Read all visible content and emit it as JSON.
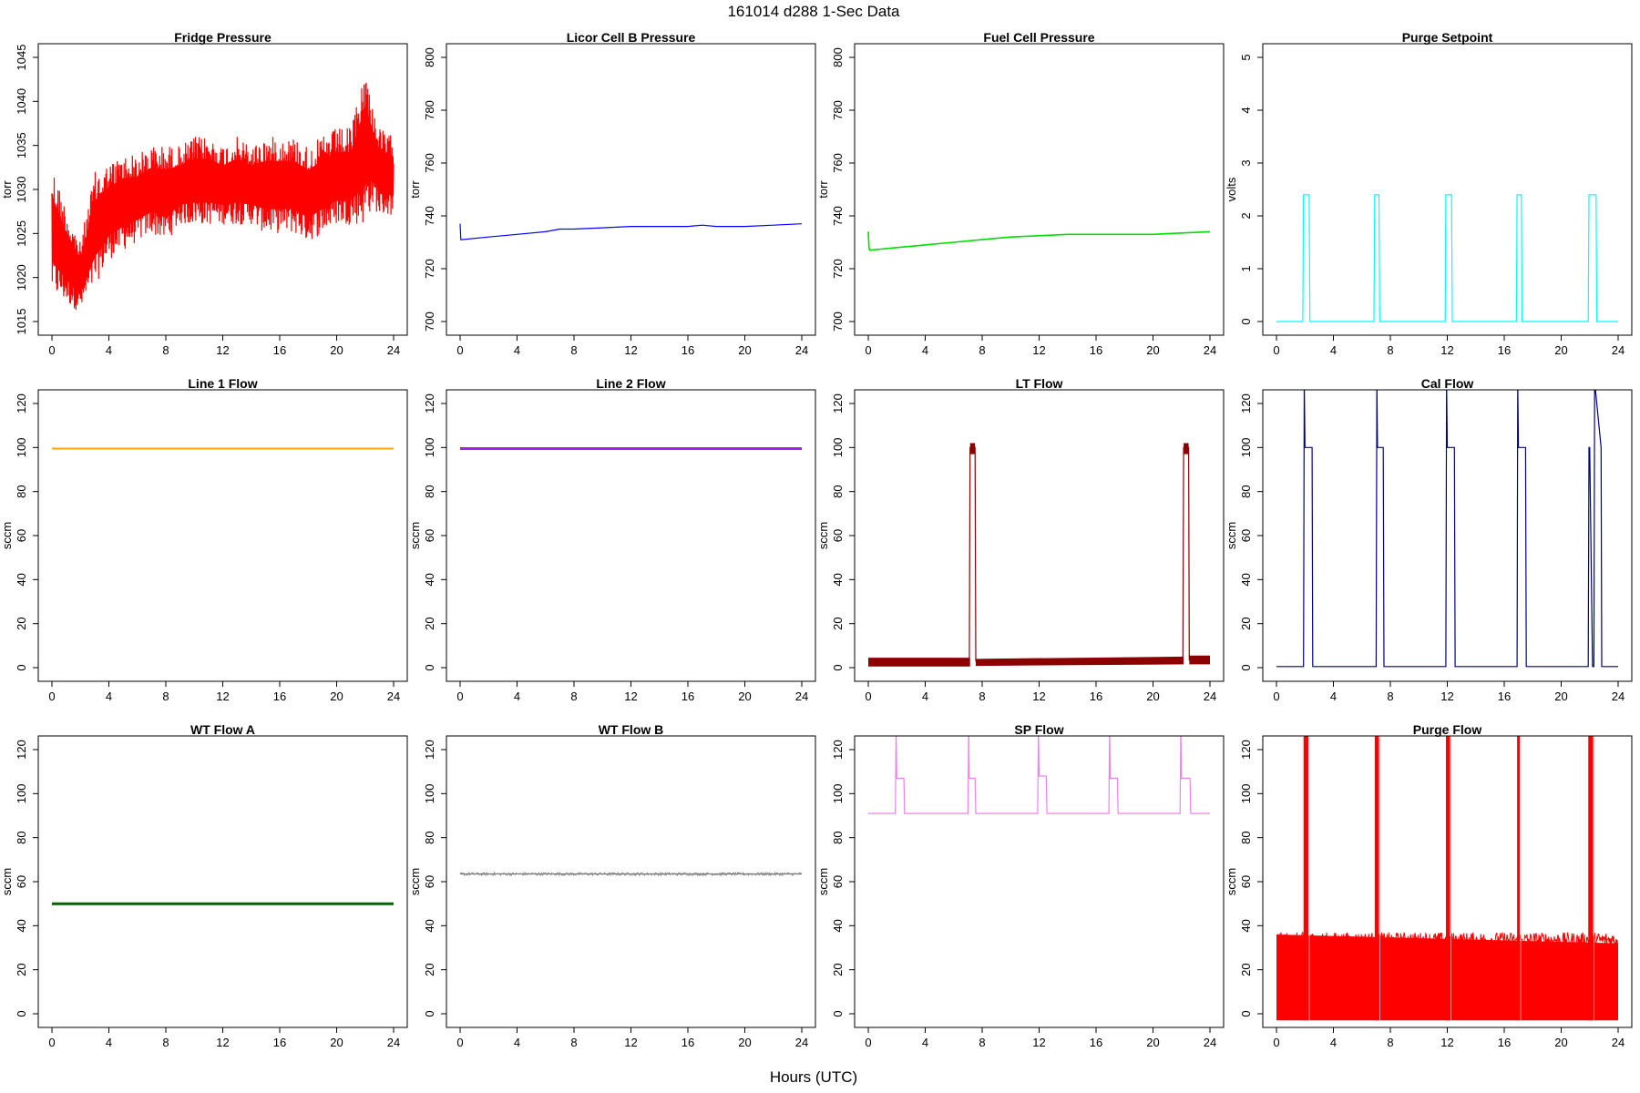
{
  "figure": {
    "title": "161014   d288   1-Sec Data",
    "xlabel": "Hours (UTC)"
  },
  "chart_data": [
    {
      "type": "line",
      "title": "Fridge Pressure",
      "ylabel": "torr",
      "color": "#ff0000",
      "xlim": [
        0,
        24
      ],
      "ylim": [
        1015,
        1045
      ],
      "xticks": [
        0,
        4,
        8,
        12,
        16,
        20,
        24
      ],
      "yticks": [
        1015,
        1020,
        1025,
        1030,
        1035,
        1040,
        1045
      ],
      "x": [
        0,
        1,
        2,
        3,
        4,
        5,
        6,
        7,
        8,
        9,
        10,
        11,
        12,
        13,
        14,
        15,
        16,
        17,
        18,
        19,
        20,
        21,
        22,
        22.5,
        23,
        24
      ],
      "series": [
        {
          "role": "upper",
          "values": [
            1033,
            1028,
            1024,
            1032,
            1033,
            1034,
            1034,
            1035,
            1035,
            1035,
            1036,
            1036,
            1035,
            1036,
            1035,
            1036,
            1036,
            1036,
            1035,
            1036,
            1037,
            1037,
            1044,
            1040,
            1037,
            1036
          ]
        },
        {
          "role": "lower",
          "values": [
            1018,
            1017,
            1016,
            1019,
            1022,
            1023,
            1024,
            1025,
            1024,
            1026,
            1026,
            1026,
            1026,
            1026,
            1026,
            1025,
            1025,
            1025,
            1024,
            1025,
            1026,
            1026,
            1026,
            1028,
            1027,
            1027
          ]
        }
      ]
    },
    {
      "type": "line",
      "title": "Licor Cell B Pressure",
      "ylabel": "torr",
      "color": "#0000ff",
      "xlim": [
        0,
        24
      ],
      "ylim": [
        700,
        800
      ],
      "xticks": [
        0,
        4,
        8,
        12,
        16,
        20,
        24
      ],
      "yticks": [
        700,
        720,
        740,
        760,
        780,
        800
      ],
      "x": [
        0,
        0.05,
        0.1,
        2,
        4,
        6,
        7,
        8,
        10,
        12,
        14,
        16,
        17,
        18,
        20,
        22,
        24
      ],
      "series": [
        {
          "values": [
            737,
            731,
            731,
            732,
            733,
            734,
            735,
            735,
            735.5,
            736,
            736,
            736,
            736.5,
            736,
            736,
            736.5,
            737
          ]
        }
      ]
    },
    {
      "type": "line",
      "title": "Fuel Cell Pressure",
      "ylabel": "torr",
      "color": "#00dd00",
      "xlim": [
        0,
        24
      ],
      "ylim": [
        700,
        800
      ],
      "xticks": [
        0,
        4,
        8,
        12,
        16,
        20,
        24
      ],
      "yticks": [
        700,
        720,
        740,
        760,
        780,
        800
      ],
      "x": [
        0,
        0.05,
        0.1,
        2,
        4,
        6,
        8,
        10,
        12,
        14,
        16,
        18,
        20,
        22,
        24
      ],
      "series": [
        {
          "values": [
            734,
            728,
            727,
            728,
            729,
            730,
            731,
            732,
            732.5,
            733,
            733,
            733,
            733,
            733.5,
            734
          ]
        }
      ]
    },
    {
      "type": "line",
      "title": "Purge Setpoint",
      "ylabel": "volts",
      "color": "#00ffff",
      "xlim": [
        0,
        24
      ],
      "ylim": [
        0,
        5
      ],
      "xticks": [
        0,
        4,
        8,
        12,
        16,
        20,
        24
      ],
      "yticks": [
        0,
        1,
        2,
        3,
        4,
        5
      ],
      "x": [
        0,
        1.85,
        1.9,
        2.3,
        2.35,
        6.85,
        6.9,
        7.2,
        7.25,
        11.85,
        11.9,
        12.3,
        12.35,
        16.85,
        16.9,
        17.2,
        17.25,
        21.9,
        21.95,
        22.45,
        22.5,
        24
      ],
      "series": [
        {
          "values": [
            0,
            0,
            2.4,
            2.4,
            0,
            0,
            2.4,
            2.4,
            0,
            0,
            2.4,
            2.4,
            0,
            0,
            2.4,
            2.4,
            0,
            0,
            2.4,
            2.4,
            0,
            0
          ]
        }
      ]
    },
    {
      "type": "line",
      "title": "Line 1 Flow",
      "ylabel": "sccm",
      "color": "#ffa500",
      "xlim": [
        0,
        24
      ],
      "ylim": [
        0,
        120
      ],
      "xticks": [
        0,
        4,
        8,
        12,
        16,
        20,
        24
      ],
      "yticks": [
        0,
        20,
        40,
        60,
        80,
        100,
        120
      ],
      "x": [
        0,
        24
      ],
      "series": [
        {
          "values": [
            99.5,
            99.5
          ]
        }
      ]
    },
    {
      "type": "line",
      "title": "Line 2 Flow",
      "ylabel": "sccm",
      "color": "#a020f0",
      "xlim": [
        0,
        24
      ],
      "ylim": [
        0,
        120
      ],
      "xticks": [
        0,
        4,
        8,
        12,
        16,
        20,
        24
      ],
      "yticks": [
        0,
        20,
        40,
        60,
        80,
        100,
        120
      ],
      "x": [
        0,
        24
      ],
      "series": [
        {
          "values": [
            99.5,
            99.5
          ]
        }
      ]
    },
    {
      "type": "line",
      "title": "LT Flow",
      "ylabel": "sccm",
      "color": "#8b0000",
      "xlim": [
        0,
        24
      ],
      "ylim": [
        0,
        120
      ],
      "xticks": [
        0,
        4,
        8,
        12,
        16,
        20,
        24
      ],
      "yticks": [
        0,
        20,
        40,
        60,
        80,
        100,
        120
      ],
      "x": [
        0,
        7.1,
        7.15,
        7.5,
        7.55,
        22.1,
        22.15,
        22.5,
        22.55,
        24
      ],
      "series": [
        {
          "values": [
            2.5,
            2.5,
            100,
            100,
            3,
            3.5,
            100,
            100,
            3.5,
            3.5
          ]
        }
      ]
    },
    {
      "type": "line",
      "title": "Cal Flow",
      "ylabel": "sccm",
      "color": "#00008b",
      "xlim": [
        0,
        24
      ],
      "ylim": [
        0,
        120
      ],
      "xticks": [
        0,
        4,
        8,
        12,
        16,
        20,
        24
      ],
      "yticks": [
        0,
        20,
        40,
        60,
        80,
        100,
        120
      ],
      "x": [
        0,
        1.9,
        1.95,
        2.0,
        2.5,
        2.55,
        7.0,
        7.05,
        7.1,
        7.5,
        7.55,
        11.9,
        11.95,
        12.0,
        12.5,
        12.55,
        16.9,
        16.95,
        17.0,
        17.5,
        17.55,
        21.9,
        21.95,
        22.0,
        22.2,
        22.3,
        22.35,
        22.8,
        22.85,
        24
      ],
      "series": [
        {
          "values": [
            0.5,
            0.5,
            130,
            100,
            100,
            0.5,
            0.5,
            130,
            100,
            100,
            0.5,
            0.5,
            130,
            100,
            100,
            0.5,
            0.5,
            130,
            100,
            100,
            0.5,
            0.5,
            100,
            100,
            0.5,
            0.5,
            130,
            100,
            0.5,
            0.5
          ]
        }
      ]
    },
    {
      "type": "line",
      "title": "WT Flow A",
      "ylabel": "sccm",
      "color": "#006400",
      "xlim": [
        0,
        24
      ],
      "ylim": [
        0,
        120
      ],
      "xticks": [
        0,
        4,
        8,
        12,
        16,
        20,
        24
      ],
      "yticks": [
        0,
        20,
        40,
        60,
        80,
        100,
        120
      ],
      "x": [
        0,
        24
      ],
      "series": [
        {
          "values": [
            50,
            50
          ]
        }
      ]
    },
    {
      "type": "line",
      "title": "WT Flow B",
      "ylabel": "sccm",
      "color": "#808080",
      "xlim": [
        0,
        24
      ],
      "ylim": [
        0,
        120
      ],
      "xticks": [
        0,
        4,
        8,
        12,
        16,
        20,
        24
      ],
      "yticks": [
        0,
        20,
        40,
        60,
        80,
        100,
        120
      ],
      "x": [
        0,
        24
      ],
      "series": [
        {
          "values": [
            63.5,
            63.5
          ]
        }
      ]
    },
    {
      "type": "line",
      "title": "SP Flow",
      "ylabel": "sccm",
      "color": "#ee82ee",
      "xlim": [
        0,
        24
      ],
      "ylim": [
        0,
        120
      ],
      "xticks": [
        0,
        4,
        8,
        12,
        16,
        20,
        24
      ],
      "yticks": [
        0,
        20,
        40,
        60,
        80,
        100,
        120
      ],
      "x": [
        0,
        1.9,
        1.95,
        2.0,
        2.5,
        2.55,
        7.0,
        7.05,
        7.1,
        7.5,
        7.55,
        11.9,
        11.95,
        12.0,
        12.5,
        12.55,
        16.9,
        16.95,
        17.0,
        17.5,
        17.55,
        21.9,
        21.95,
        22.0,
        22.6,
        22.65,
        24
      ],
      "series": [
        {
          "values": [
            91,
            91,
            130,
            107,
            107,
            91,
            91,
            130,
            107,
            107,
            91,
            91,
            130,
            108,
            108,
            91,
            91,
            130,
            107,
            107,
            91,
            91,
            130,
            107,
            107,
            91,
            91
          ]
        }
      ]
    },
    {
      "type": "line",
      "title": "Purge Flow",
      "ylabel": "sccm",
      "color": "#ff0000",
      "xlim": [
        0,
        24
      ],
      "ylim": [
        0,
        120
      ],
      "xticks": [
        0,
        4,
        8,
        12,
        16,
        20,
        24
      ],
      "yticks": [
        0,
        20,
        40,
        60,
        80,
        100,
        120
      ],
      "x": [
        0,
        24
      ],
      "spikes": [
        2.0,
        2.15,
        7.0,
        7.1,
        12.0,
        12.1,
        17.0,
        22.0,
        22.15
      ],
      "series": [
        {
          "role": "upper",
          "values": [
            36,
            32
          ]
        },
        {
          "role": "lower",
          "values": [
            -3,
            -3
          ]
        }
      ]
    }
  ]
}
